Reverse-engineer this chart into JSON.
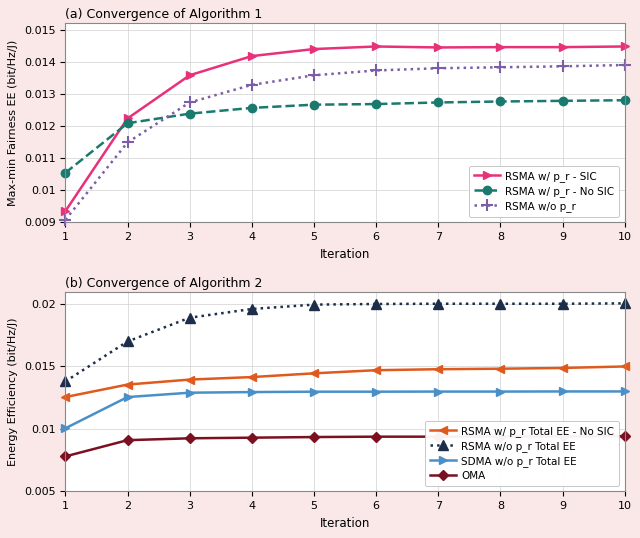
{
  "subplot_a": {
    "title": "(a) Convergence of Algorithm 1",
    "xlabel": "Iteration",
    "ylabel": "Max-min Fairness EE (bit/Hz/J)",
    "xlim": [
      1,
      10
    ],
    "ylim": [
      0.009,
      0.01525
    ],
    "yticks": [
      0.009,
      0.01,
      0.011,
      0.012,
      0.013,
      0.014,
      0.015
    ],
    "ytick_labels": [
      "0.009",
      "0.01",
      "0.011",
      "0.012",
      "0.013",
      "0.014",
      "0.015"
    ],
    "xticks": [
      1,
      2,
      3,
      4,
      5,
      6,
      7,
      8,
      9,
      10
    ],
    "series": [
      {
        "label": "RSMA w/ p_r - SIC",
        "color": "#e8317a",
        "linestyle": "-",
        "marker": ">",
        "markersize": 6,
        "linewidth": 1.8,
        "x": [
          1,
          2,
          3,
          4,
          5,
          6,
          7,
          8,
          9,
          10
        ],
        "y": [
          0.00935,
          0.01225,
          0.0136,
          0.0142,
          0.01442,
          0.0145,
          0.01447,
          0.01448,
          0.01448,
          0.0145
        ]
      },
      {
        "label": "RSMA w/ p_r - No SIC",
        "color": "#1a7a6e",
        "linestyle": "--",
        "marker": "o",
        "markersize": 6,
        "linewidth": 1.8,
        "x": [
          1,
          2,
          3,
          4,
          5,
          6,
          7,
          8,
          9,
          10
        ],
        "y": [
          0.01055,
          0.0121,
          0.0124,
          0.01258,
          0.01268,
          0.0127,
          0.01275,
          0.01278,
          0.0128,
          0.01282
        ]
      },
      {
        "label": "RSMA w/o p_r",
        "color": "#7b5ea7",
        "linestyle": ":",
        "marker": "+",
        "markersize": 8,
        "linewidth": 1.8,
        "x": [
          1,
          2,
          3,
          4,
          5,
          6,
          7,
          8,
          9,
          10
        ],
        "y": [
          0.00908,
          0.0115,
          0.01275,
          0.0133,
          0.0136,
          0.01375,
          0.01382,
          0.01385,
          0.01388,
          0.01392
        ]
      }
    ]
  },
  "subplot_b": {
    "title": "(b) Convergence of Algorithm 2",
    "xlabel": "Iteration",
    "ylabel": "Energy Efficiency (bit/Hz/J)",
    "xlim": [
      1,
      10
    ],
    "ylim": [
      0.005,
      0.021
    ],
    "yticks": [
      0.005,
      0.01,
      0.015,
      0.02
    ],
    "ytick_labels": [
      "0.005",
      "0.01",
      "0.015",
      "0.02"
    ],
    "xticks": [
      1,
      2,
      3,
      4,
      5,
      6,
      7,
      8,
      9,
      10
    ],
    "series": [
      {
        "label": "RSMA w/ p_r Total EE - No SIC",
        "color": "#e05a1e",
        "linestyle": "-",
        "marker": "<",
        "markersize": 6,
        "linewidth": 1.8,
        "x": [
          1,
          2,
          3,
          4,
          5,
          6,
          7,
          8,
          9,
          10
        ],
        "y": [
          0.01255,
          0.01355,
          0.01395,
          0.01415,
          0.01445,
          0.0147,
          0.01478,
          0.01482,
          0.01488,
          0.015
        ]
      },
      {
        "label": "RSMA w/o p_r Total EE",
        "color": "#1c2e4a",
        "linestyle": ":",
        "marker": "^",
        "markersize": 7,
        "linewidth": 1.8,
        "x": [
          1,
          2,
          3,
          4,
          5,
          6,
          7,
          8,
          9,
          10
        ],
        "y": [
          0.0138,
          0.017,
          0.0189,
          0.0196,
          0.01995,
          0.02,
          0.02002,
          0.02002,
          0.02002,
          0.02005
        ]
      },
      {
        "label": "SDMA w/o p_r Total EE",
        "color": "#4a90c8",
        "linestyle": "-",
        "marker": ">",
        "markersize": 6,
        "linewidth": 1.8,
        "x": [
          1,
          2,
          3,
          4,
          5,
          6,
          7,
          8,
          9,
          10
        ],
        "y": [
          0.01005,
          0.01255,
          0.0129,
          0.01295,
          0.01298,
          0.01298,
          0.01299,
          0.01299,
          0.013,
          0.013
        ]
      },
      {
        "label": "OMA",
        "color": "#7a1020",
        "linestyle": "-",
        "marker": "D",
        "markersize": 5,
        "linewidth": 1.8,
        "x": [
          1,
          2,
          3,
          4,
          5,
          6,
          7,
          8,
          9,
          10
        ],
        "y": [
          0.0078,
          0.0091,
          0.00925,
          0.0093,
          0.00935,
          0.00938,
          0.00938,
          0.00939,
          0.0094,
          0.00942
        ]
      }
    ]
  },
  "background_color": "#fae8e8",
  "plot_bg_color": "#ffffff",
  "grid_color": "#d0d0d0",
  "title_fontsize": 9,
  "label_fontsize": 8.5,
  "tick_fontsize": 8,
  "legend_fontsize": 7.5
}
